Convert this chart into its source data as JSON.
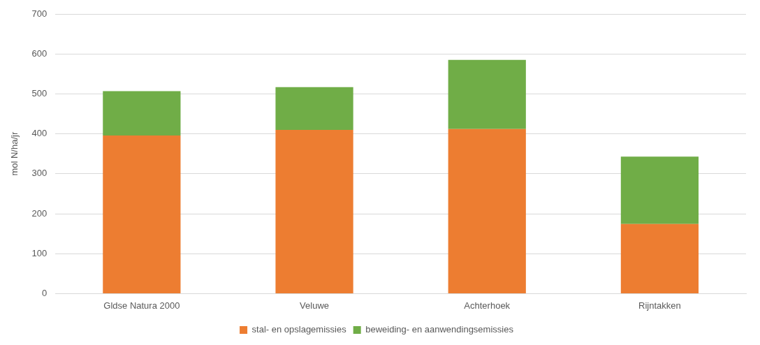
{
  "chart_data": {
    "type": "bar",
    "stacked": true,
    "ylabel": "mol N/ha/jr",
    "categories": [
      "Gldse Natura 2000",
      "Veluwe",
      "Achterhoek",
      "Rijntakken"
    ],
    "series": [
      {
        "name": "stal- en opslagemissies",
        "color": "#ed7d31",
        "values": [
          396,
          410,
          412,
          174
        ]
      },
      {
        "name": "beweiding- en aanwendingsemissies",
        "color": "#70ad47",
        "values": [
          111,
          107,
          173,
          169
        ]
      }
    ],
    "ylim": [
      0,
      700
    ],
    "yticks": [
      0,
      100,
      200,
      300,
      400,
      500,
      600,
      700
    ],
    "grid": "y",
    "legend": "bottom"
  }
}
